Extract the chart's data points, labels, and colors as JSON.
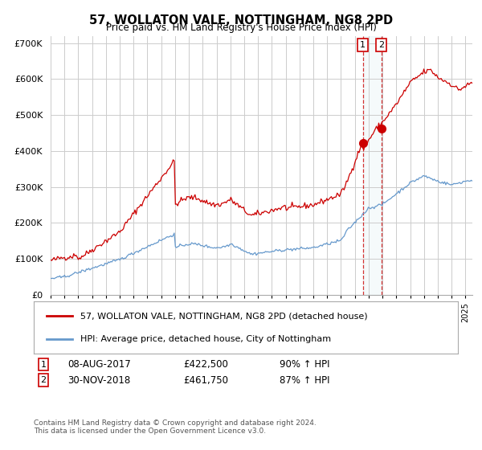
{
  "title1": "57, WOLLATON VALE, NOTTINGHAM, NG8 2PD",
  "title2": "Price paid vs. HM Land Registry's House Price Index (HPI)",
  "legend1": "57, WOLLATON VALE, NOTTINGHAM, NG8 2PD (detached house)",
  "legend2": "HPI: Average price, detached house, City of Nottingham",
  "sale1_date": "08-AUG-2017",
  "sale1_price": 422500,
  "sale1_hpi": "90% ↑ HPI",
  "sale2_date": "30-NOV-2018",
  "sale2_price": 461750,
  "sale2_hpi": "87% ↑ HPI",
  "footer": "Contains HM Land Registry data © Crown copyright and database right 2024.\nThis data is licensed under the Open Government Licence v3.0.",
  "red_color": "#cc0000",
  "blue_color": "#6699cc",
  "background_color": "#ffffff",
  "grid_color": "#cccccc",
  "sale1_x": 2017.58,
  "sale2_x": 2018.92,
  "ylim": [
    0,
    720000
  ],
  "xlim_start": 1995.0,
  "xlim_end": 2025.5
}
